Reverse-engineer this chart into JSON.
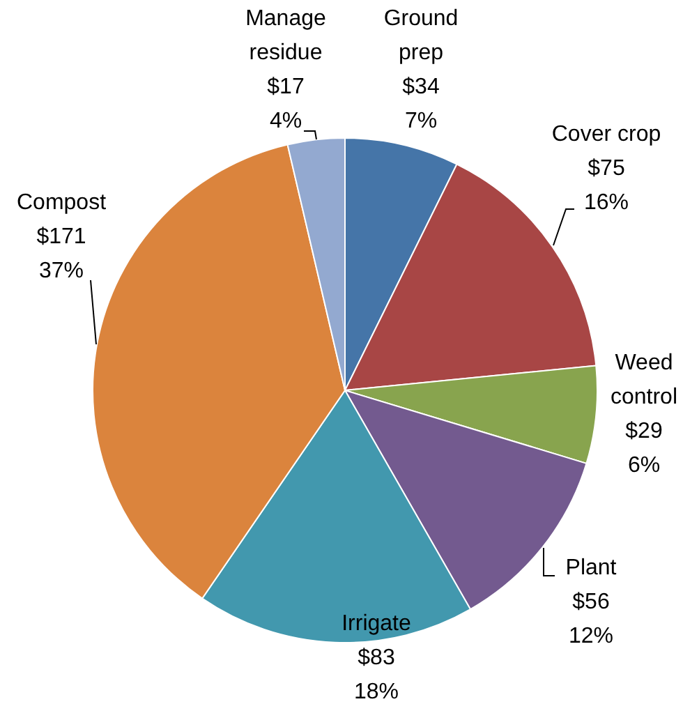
{
  "chart_data": {
    "type": "pie",
    "categories": [
      "Ground prep",
      "Cover crop",
      "Weed control",
      "Plant",
      "Irrigate",
      "Compost",
      "Manage residue"
    ],
    "values": [
      34,
      75,
      29,
      56,
      83,
      171,
      17
    ],
    "value_labels": [
      "$34\n7%",
      "$75\n16%",
      "$29\n6%",
      "$56\n12%",
      "$83\n18%",
      "$171\n37%",
      "$17\n4%"
    ],
    "colors": [
      "#4575a8",
      "#a84645",
      "#88a44e",
      "#735a8f",
      "#4298ae",
      "#db843d",
      "#93a9d0"
    ]
  }
}
